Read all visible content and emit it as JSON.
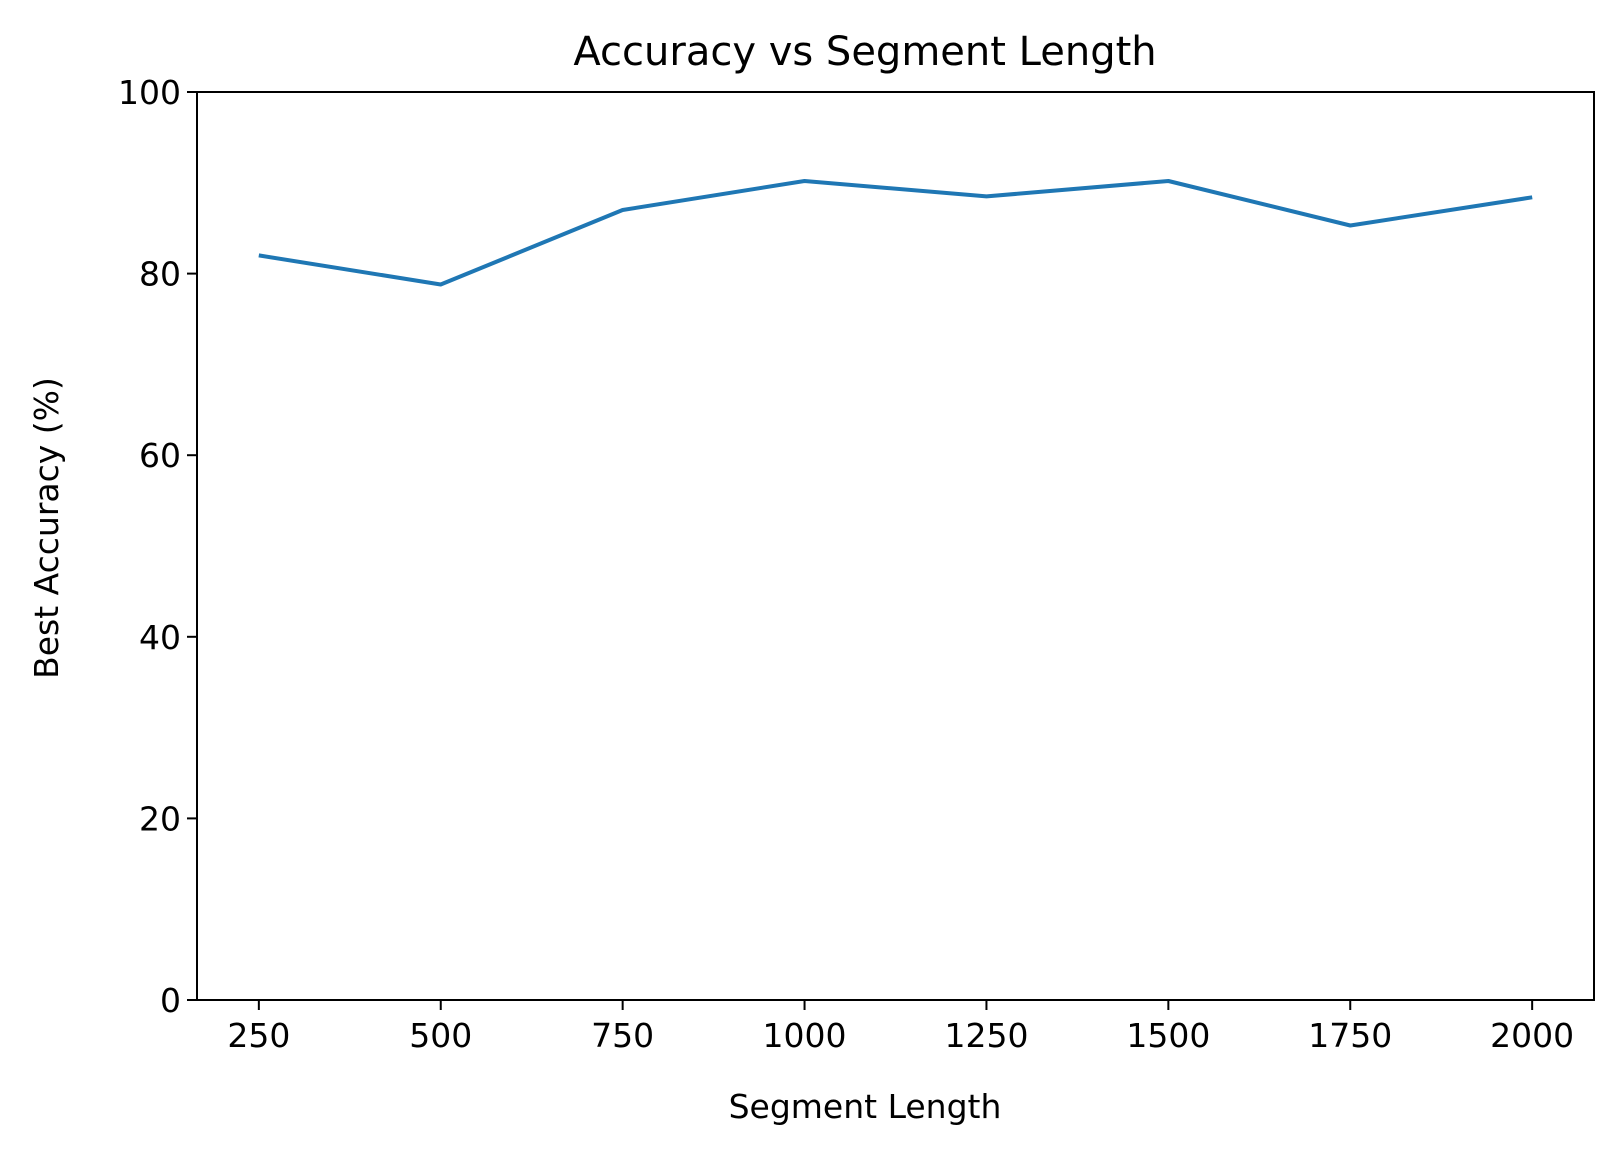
{
  "chart_data": {
    "type": "line",
    "title": "Accuracy vs Segment Length",
    "xlabel": "Segment Length",
    "ylabel": "Best Accuracy (%)",
    "xlim": [
      165,
      2085
    ],
    "ylim": [
      0,
      100
    ],
    "x_ticks": [
      250,
      500,
      750,
      1000,
      1250,
      1500,
      1750,
      2000
    ],
    "y_ticks": [
      0,
      20,
      40,
      60,
      80,
      100
    ],
    "grid": false,
    "series": [
      {
        "color": "#1f77b4",
        "x": [
          250,
          500,
          750,
          1000,
          1250,
          1500,
          1750,
          2000
        ],
        "values": [
          82.0,
          78.8,
          87.0,
          90.2,
          88.5,
          90.2,
          85.3,
          88.4
        ]
      }
    ]
  }
}
